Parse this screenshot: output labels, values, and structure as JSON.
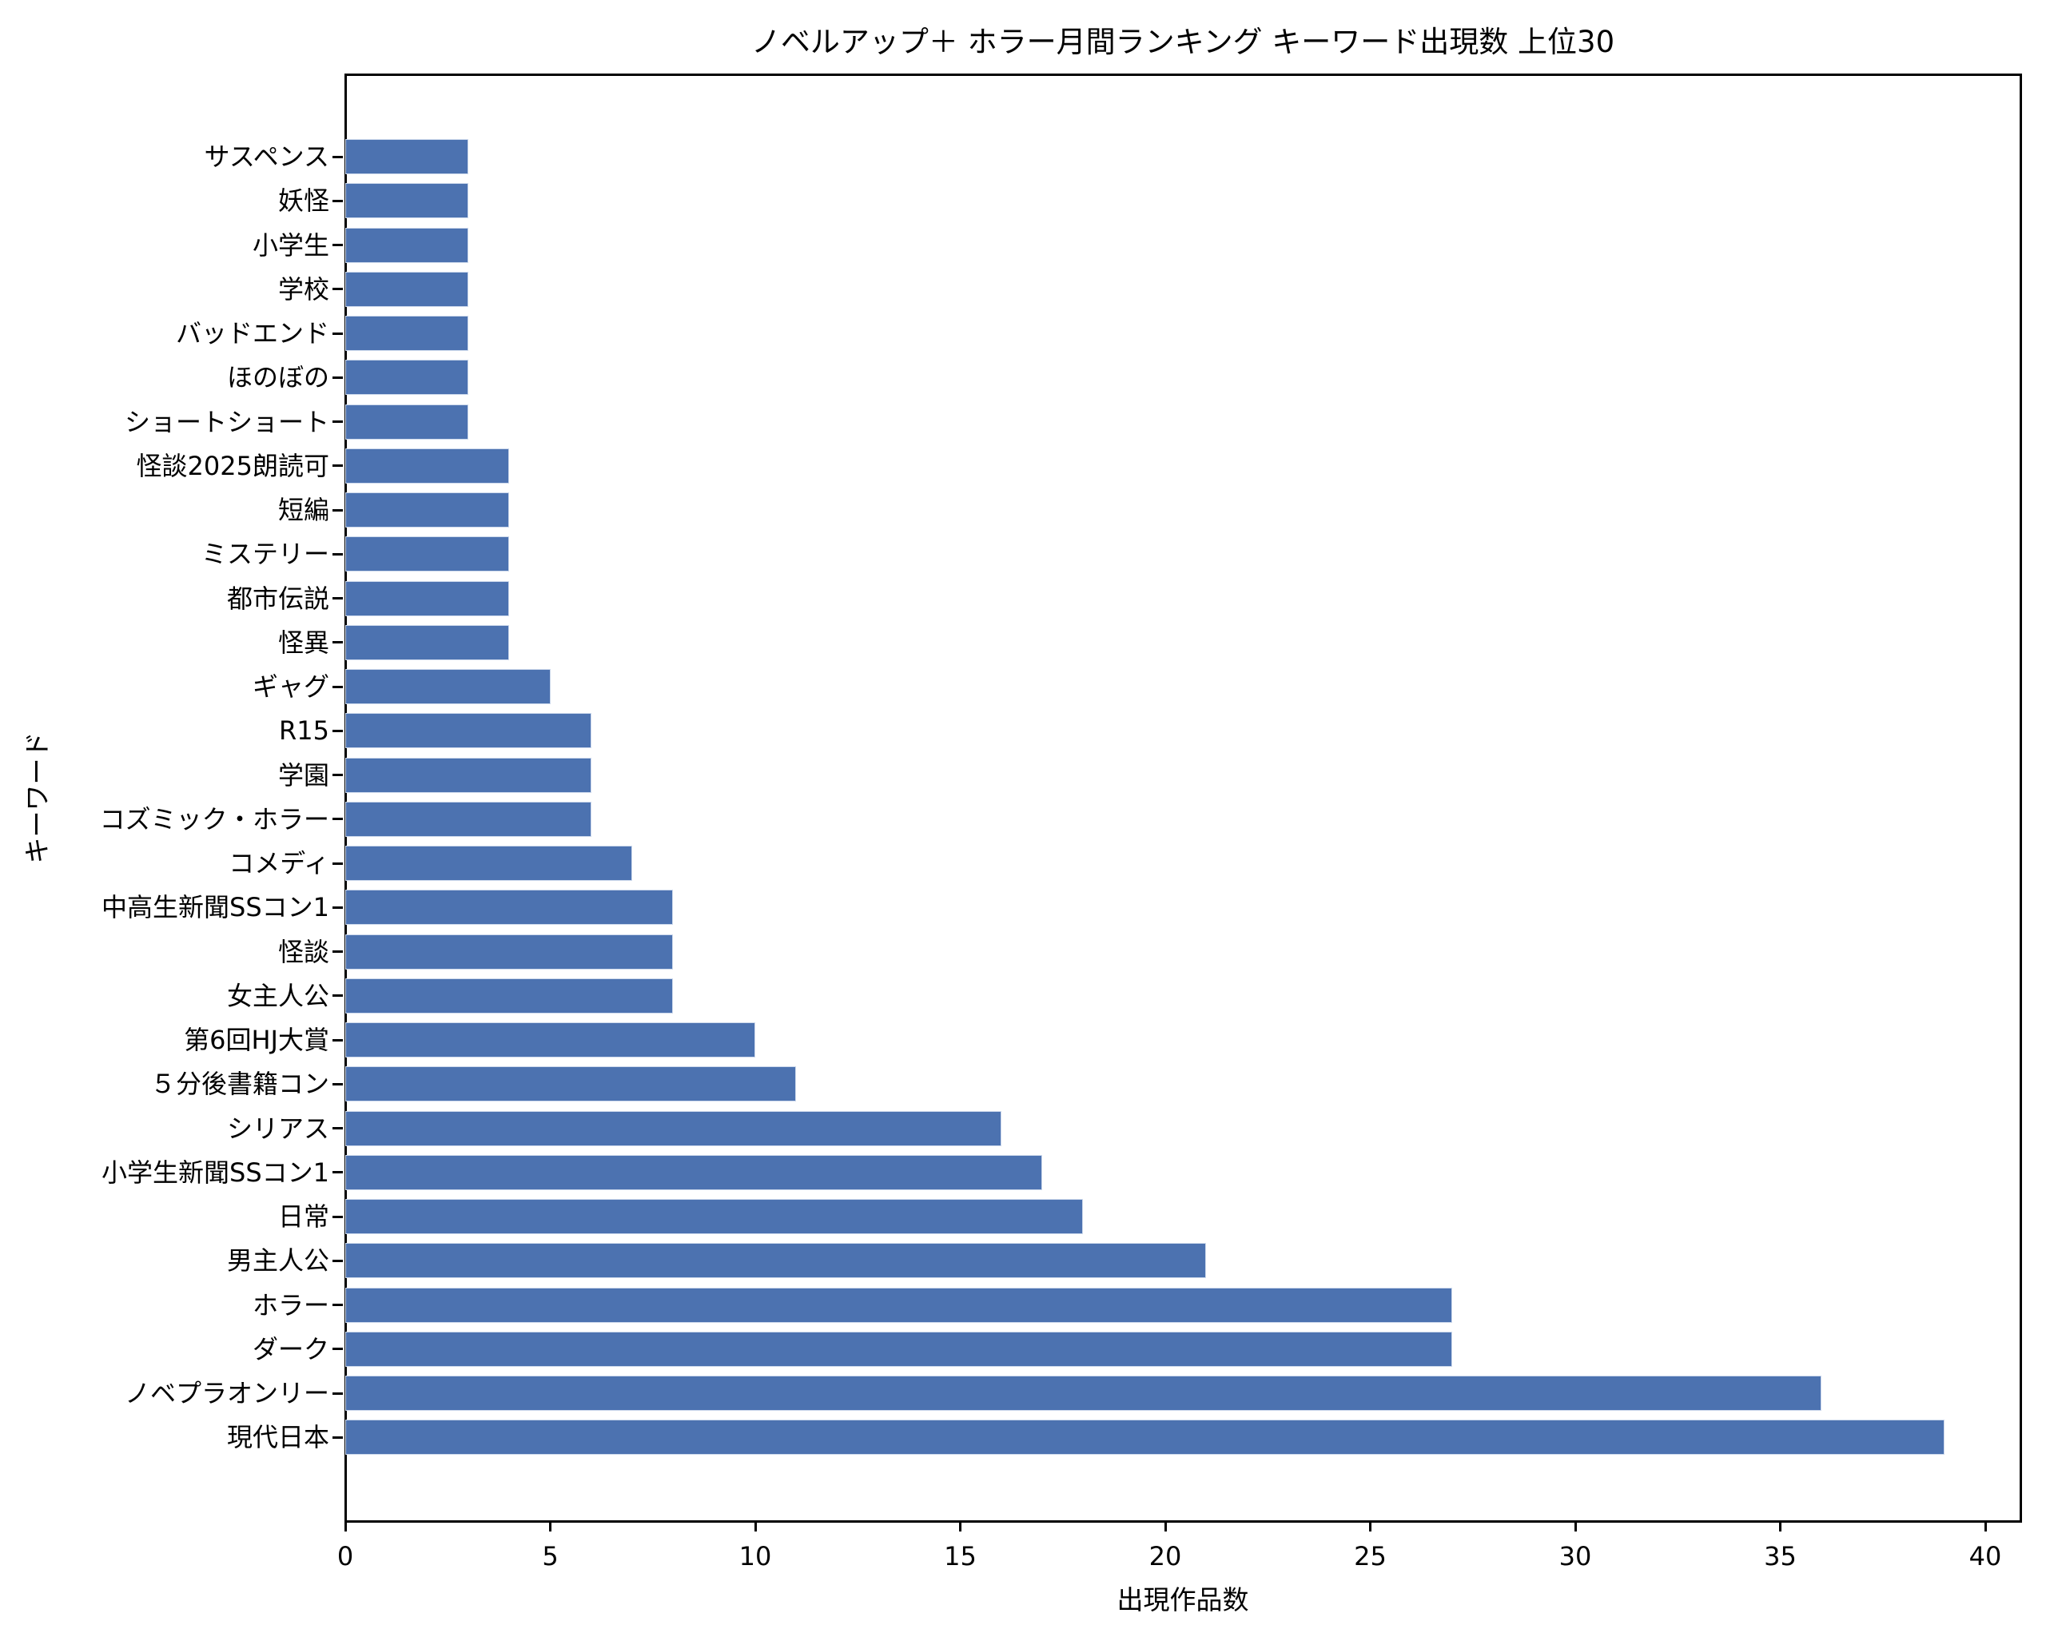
{
  "chart_data": {
    "type": "bar",
    "orientation": "horizontal",
    "title": "ノベルアップ＋ ホラー月間ランキング キーワード出現数 上位30",
    "xlabel": "出現作品数",
    "ylabel": "キーワード",
    "xlim": [
      0,
      40.86
    ],
    "xticks": [
      0,
      5,
      10,
      15,
      20,
      25,
      30,
      35,
      40
    ],
    "grid": false,
    "legend": "none",
    "bar_color": "#4C72B0",
    "bar_edge_color": "#CDD9EC",
    "categories_top_to_bottom": [
      "サスペンス",
      "妖怪",
      "小学生",
      "学校",
      "バッドエンド",
      "ほのぼの",
      "ショートショート",
      "怪談2025朗読可",
      "短編",
      "ミステリー",
      "都市伝説",
      "怪異",
      "ギャグ",
      "R15",
      "学園",
      "コズミック・ホラー",
      "コメディ",
      "中高生新聞SSコン1",
      "怪談",
      "女主人公",
      "第6回HJ大賞",
      "５分後書籍コン",
      "シリアス",
      "小学生新聞SSコン1",
      "日常",
      "男主人公",
      "ホラー",
      "ダーク",
      "ノベプラオンリー",
      "現代日本"
    ],
    "values": [
      3,
      3,
      3,
      3,
      3,
      3,
      3,
      4,
      4,
      4,
      4,
      4,
      5,
      6,
      6,
      6,
      7,
      8,
      8,
      8,
      10,
      11,
      16,
      17,
      18,
      21,
      27,
      27,
      36,
      39
    ]
  }
}
